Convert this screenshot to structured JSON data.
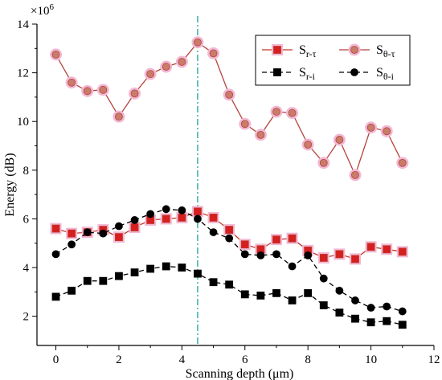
{
  "chart_data": {
    "type": "line",
    "xlabel": "Scanning depth (μm)",
    "ylabel": "Energy (dB)",
    "y_multiplier_label": "×10",
    "y_multiplier_exponent": "6",
    "xlim": [
      -0.6,
      12
    ],
    "ylim": [
      0.8,
      14
    ],
    "xticks": [
      0,
      2,
      4,
      6,
      8,
      10,
      12
    ],
    "yticks": [
      2,
      4,
      6,
      8,
      10,
      12,
      14
    ],
    "grid": false,
    "legend_position": "top-right",
    "reference_line_x": 4.5,
    "reference_line_color": "#1aa39a",
    "x": [
      0,
      0.5,
      1,
      1.5,
      2,
      2.5,
      3,
      3.5,
      4,
      4.5,
      5,
      5.5,
      6,
      6.5,
      7,
      7.5,
      8,
      8.5,
      9,
      9.5,
      10,
      10.5,
      11
    ],
    "series": [
      {
        "label_base": "S",
        "label_sub": "r-τ",
        "marker": "square",
        "line_style": "solid",
        "color": "#c0392b",
        "marker_color": "#d61f1f",
        "halo_color": "#f2b8d4",
        "values": [
          5.6,
          5.4,
          5.45,
          5.55,
          5.25,
          5.65,
          5.95,
          6.0,
          6.05,
          6.3,
          6.05,
          5.55,
          4.95,
          4.75,
          5.15,
          5.2,
          4.7,
          4.4,
          4.55,
          4.35,
          4.85,
          4.75,
          4.65
        ]
      },
      {
        "label_base": "S",
        "label_sub": "θ-τ",
        "marker": "circle",
        "line_style": "solid",
        "color": "#b5433a",
        "marker_color": "#c97c6a",
        "halo_color": "#f2b8d4",
        "values": [
          12.75,
          11.6,
          11.25,
          11.3,
          10.2,
          11.15,
          11.95,
          12.25,
          12.45,
          13.25,
          12.8,
          11.1,
          9.9,
          9.45,
          10.4,
          10.35,
          9.05,
          8.3,
          9.25,
          7.8,
          9.75,
          9.6,
          8.3
        ]
      },
      {
        "label_base": "S",
        "label_sub": "r-i",
        "marker": "square",
        "line_style": "dashed",
        "color": "#000000",
        "marker_color": "#000000",
        "halo_color": "",
        "values": [
          2.8,
          3.05,
          3.45,
          3.45,
          3.65,
          3.8,
          3.95,
          4.05,
          4.0,
          3.75,
          3.4,
          3.3,
          2.9,
          2.85,
          2.95,
          2.65,
          2.95,
          2.45,
          2.15,
          1.9,
          1.75,
          1.8,
          1.65
        ]
      },
      {
        "label_base": "S",
        "label_sub": "θ-i",
        "marker": "circle",
        "line_style": "dashed",
        "color": "#000000",
        "marker_color": "#000000",
        "halo_color": "",
        "values": [
          4.55,
          4.95,
          5.45,
          5.4,
          5.7,
          5.95,
          6.2,
          6.4,
          6.35,
          6.0,
          5.45,
          5.2,
          4.55,
          4.5,
          4.55,
          4.05,
          4.5,
          3.55,
          3.05,
          2.65,
          2.35,
          2.4,
          2.2
        ]
      }
    ]
  }
}
